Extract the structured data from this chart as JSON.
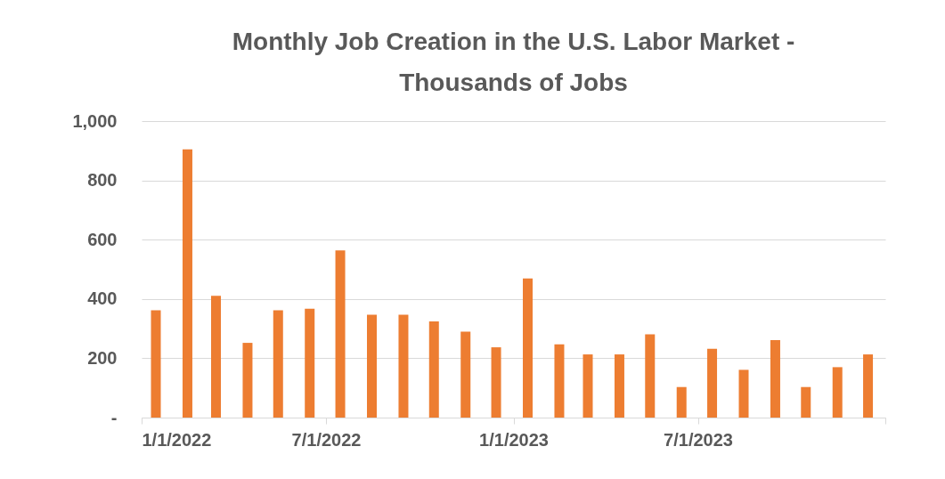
{
  "chart_data": {
    "type": "bar",
    "title": "Monthly Job Creation in the U.S. Labor Market - Thousands  of Jobs",
    "x": [
      "2022-01-15",
      "2022-02-15",
      "2022-03-15",
      "2022-04-15",
      "2022-05-15",
      "2022-06-15",
      "2022-07-15",
      "2022-08-15",
      "2022-09-15",
      "2022-10-15",
      "2022-11-15",
      "2022-12-15",
      "2023-01-15",
      "2023-02-15",
      "2023-03-15",
      "2023-04-15",
      "2023-05-15",
      "2023-06-15",
      "2023-07-15",
      "2023-08-15",
      "2023-09-15",
      "2023-10-15",
      "2023-11-15",
      "2023-12-15"
    ],
    "series": [
      {
        "color": "#ed7d31",
        "values": [
          362,
          905,
          411,
          252,
          362,
          367,
          564,
          347,
          347,
          324,
          290,
          237,
          469,
          247,
          213,
          213,
          281,
          103,
          232,
          161,
          261,
          103,
          170,
          213
        ]
      }
    ],
    "xlim": [
      "2022-01-01",
      "2024-01-01"
    ],
    "xticks": [
      {
        "value": "2022-01-01",
        "label": "1/1/2022"
      },
      {
        "value": "2022-07-01",
        "label": "7/1/2022"
      },
      {
        "value": "2023-01-01",
        "label": "1/1/2023"
      },
      {
        "value": "2023-07-01",
        "label": "7/1/2023"
      },
      {
        "value": "2024-01-01",
        "label": null
      }
    ],
    "ylim": [
      0,
      1000
    ],
    "yticks": [
      {
        "value": 0,
        "label": "-"
      },
      200,
      400,
      600,
      800,
      {
        "value": 1000,
        "label": "1,000"
      }
    ],
    "grid": "y",
    "legend": false
  }
}
